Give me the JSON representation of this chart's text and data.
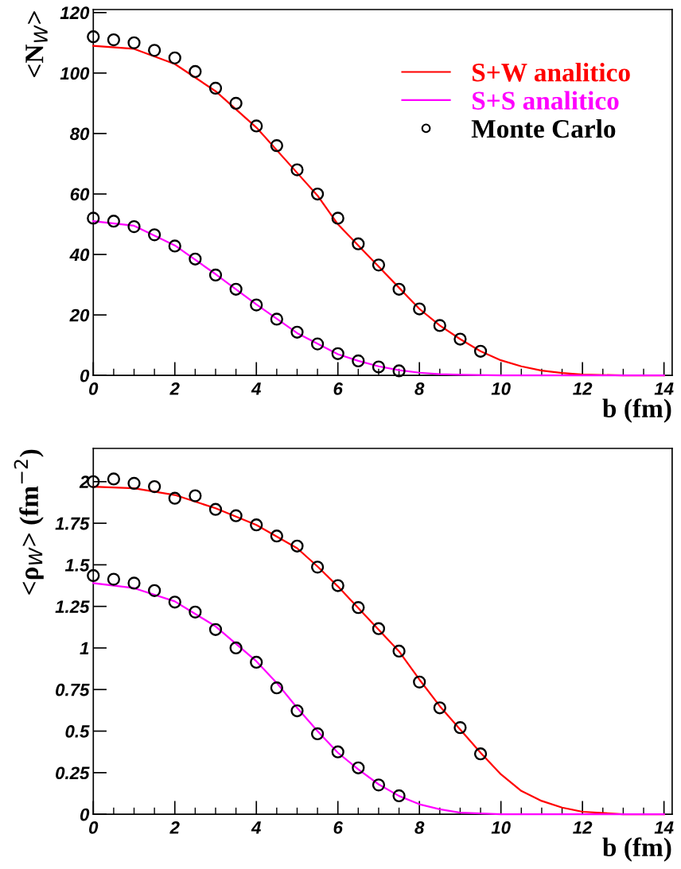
{
  "chart_data": [
    {
      "type": "line",
      "ylabel": "<N$_{W}$>",
      "xlabel": "b (fm)",
      "xlim": [
        0,
        14.2
      ],
      "ylim": [
        0,
        121
      ],
      "xticks": [
        0,
        2,
        4,
        6,
        8,
        10,
        12,
        14
      ],
      "yticks": [
        0,
        20,
        40,
        60,
        80,
        100,
        120
      ],
      "legend": "top right",
      "grid": false,
      "series": [
        {
          "name": "S+W analitico",
          "color": "#ff0000",
          "x": [
            0,
            1,
            2,
            3,
            4,
            5,
            5.5,
            6,
            6.5,
            7,
            7.5,
            8,
            8.5,
            9,
            9.5,
            10,
            10.5,
            11,
            11.5,
            12,
            13,
            14
          ],
          "values": [
            109,
            108,
            103,
            94,
            82,
            67,
            59.5,
            50,
            43,
            36,
            29,
            22,
            16.5,
            12,
            8,
            5,
            3,
            1.6,
            0.8,
            0.3,
            0,
            0
          ]
        },
        {
          "name": "S+S analitico",
          "color": "#ff00ff",
          "x": [
            0,
            1,
            2,
            3,
            4,
            5,
            6,
            6.5,
            7,
            7.5,
            8,
            8.5,
            9,
            10,
            11,
            14
          ],
          "values": [
            51,
            49.5,
            43,
            33.5,
            23.5,
            14,
            7,
            4.8,
            3,
            1.7,
            0.9,
            0.4,
            0.2,
            0,
            0,
            0
          ]
        },
        {
          "name": "Monte Carlo",
          "type": "scatter",
          "marker": "circle",
          "color": "#000000",
          "x": [
            0,
            0.5,
            1,
            1.5,
            2,
            2.5,
            3,
            3.5,
            4,
            4.5,
            5,
            5.5,
            6,
            6.5,
            7,
            7.5,
            8,
            8.5,
            9,
            9.5
          ],
          "values": [
            112,
            111,
            110,
            107.5,
            105,
            100.5,
            95,
            90,
            82.5,
            76,
            68,
            60,
            52,
            43.5,
            36.5,
            28.5,
            22,
            16.5,
            12,
            8
          ]
        },
        {
          "type": "scatter",
          "marker": "circle",
          "color": "#000000",
          "x": [
            0,
            0.5,
            1,
            1.5,
            2,
            2.5,
            3,
            3.5,
            4,
            4.5,
            5,
            5.5,
            6,
            6.5,
            7,
            7.5
          ],
          "values": [
            52,
            51,
            49.2,
            46.5,
            42.8,
            38.5,
            33.2,
            28.5,
            23.3,
            18.6,
            14.3,
            10.4,
            7.2,
            4.8,
            2.8,
            1.5
          ]
        }
      ]
    },
    {
      "type": "line",
      "ylabel": "<ρ$_{W}$> (fm$^{−2}$)",
      "xlabel": "b (fm)",
      "xlim": [
        0,
        14.2
      ],
      "ylim": [
        0,
        2.2
      ],
      "xticks": [
        0,
        2,
        4,
        6,
        8,
        10,
        12,
        14
      ],
      "yticks": [
        0,
        0.25,
        0.5,
        0.75,
        1,
        1.25,
        1.5,
        1.75,
        2
      ],
      "grid": false,
      "series": [
        {
          "color": "#ff0000",
          "x": [
            0,
            1,
            2,
            3,
            4,
            5,
            5.5,
            6,
            6.5,
            7,
            7.5,
            8,
            8.5,
            9,
            9.5,
            10,
            10.5,
            11,
            11.5,
            12,
            13,
            14
          ],
          "values": [
            1.97,
            1.96,
            1.92,
            1.84,
            1.74,
            1.6,
            1.49,
            1.37,
            1.24,
            1.11,
            0.98,
            0.81,
            0.65,
            0.51,
            0.37,
            0.24,
            0.14,
            0.08,
            0.04,
            0.015,
            0,
            0
          ]
        },
        {
          "color": "#ff00ff",
          "x": [
            0,
            1,
            2,
            3,
            4,
            4.5,
            5,
            5.5,
            6,
            6.5,
            7,
            7.5,
            8,
            8.5,
            9,
            10,
            14
          ],
          "values": [
            1.39,
            1.36,
            1.28,
            1.13,
            0.92,
            0.79,
            0.64,
            0.5,
            0.37,
            0.27,
            0.18,
            0.11,
            0.06,
            0.03,
            0.01,
            0,
            0
          ]
        },
        {
          "type": "scatter",
          "marker": "circle",
          "color": "#000000",
          "x": [
            0,
            0.5,
            1,
            1.5,
            2,
            2.5,
            3,
            3.5,
            4,
            4.5,
            5,
            5.5,
            6,
            6.5,
            7,
            7.5,
            8,
            8.5,
            9,
            9.5
          ],
          "values": [
            2.0,
            2.016,
            1.99,
            1.97,
            1.9,
            1.915,
            1.833,
            1.795,
            1.74,
            1.673,
            1.613,
            1.486,
            1.375,
            1.243,
            1.116,
            0.981,
            0.795,
            0.64,
            0.521,
            0.363
          ]
        },
        {
          "type": "scatter",
          "marker": "circle",
          "color": "#000000",
          "x": [
            0,
            0.5,
            1,
            1.5,
            2,
            2.5,
            3,
            3.5,
            4,
            4.5,
            5,
            5.5,
            6,
            6.5,
            7,
            7.5
          ],
          "values": [
            1.435,
            1.413,
            1.39,
            1.345,
            1.276,
            1.216,
            1.111,
            1.0,
            0.914,
            0.76,
            0.622,
            0.484,
            0.375,
            0.279,
            0.176,
            0.111
          ]
        }
      ]
    }
  ]
}
